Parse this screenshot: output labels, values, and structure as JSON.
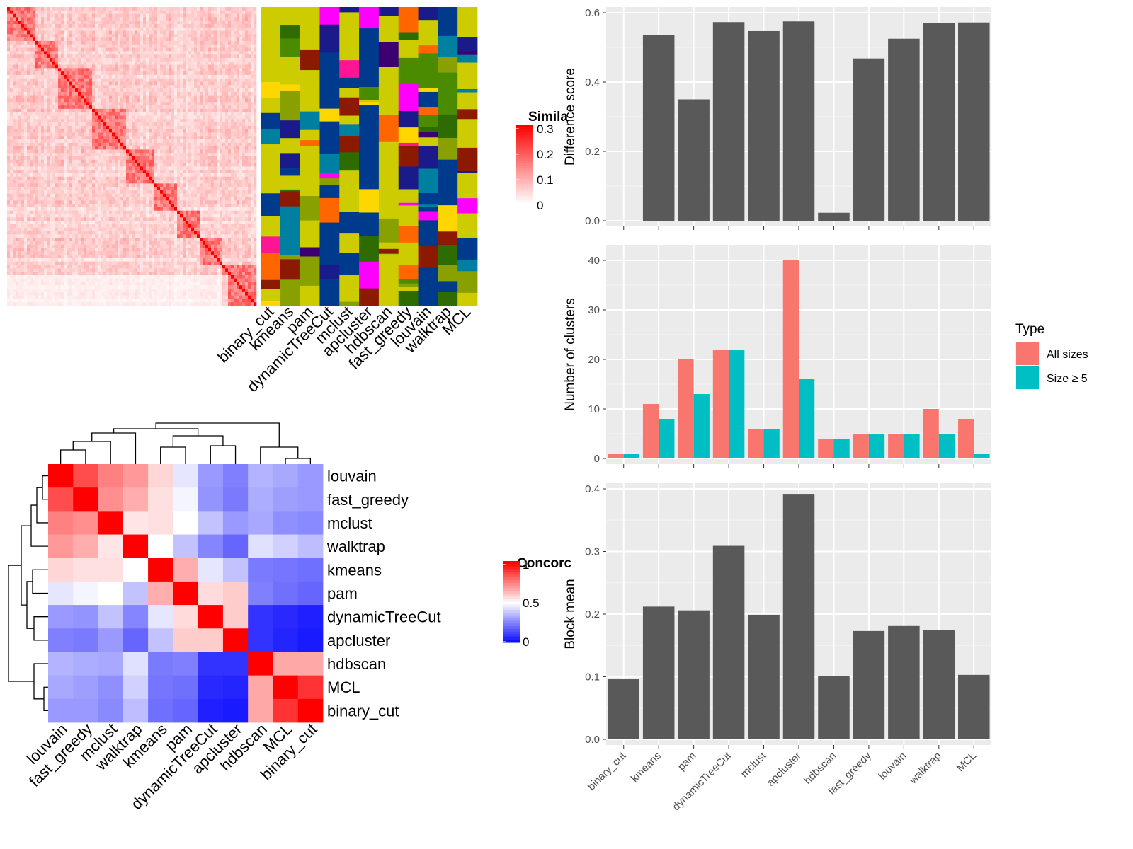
{
  "chart_data": [
    {
      "id": "similarity_heatmap",
      "type": "heatmap",
      "legend": {
        "title": "Simila",
        "ticks": [
          "0.3",
          "0.2",
          "0.1",
          "0"
        ],
        "colors": [
          "#ffffff",
          "#ff0000"
        ]
      },
      "methods": [
        "binary_cut",
        "kmeans",
        "pam",
        "dynamicTreeCut",
        "mclust",
        "apcluster",
        "hdbscan",
        "fast_greedy",
        "louvain",
        "walktrap",
        "MCL"
      ]
    },
    {
      "id": "concordance_heatmap",
      "type": "heatmap",
      "legend": {
        "title": "Concorc",
        "ticks": [
          "1",
          "0.5",
          "0"
        ],
        "colors": [
          "#0000ff",
          "#ffffff",
          "#ff0000"
        ]
      },
      "labels": [
        "louvain",
        "fast_greedy",
        "mclust",
        "walktrap",
        "kmeans",
        "pam",
        "dynamicTreeCut",
        "apcluster",
        "hdbscan",
        "MCL",
        "binary_cut"
      ],
      "matrix": [
        [
          1.0,
          0.85,
          0.75,
          0.7,
          0.58,
          0.45,
          0.3,
          0.25,
          0.35,
          0.33,
          0.3
        ],
        [
          0.85,
          1.0,
          0.72,
          0.66,
          0.56,
          0.48,
          0.29,
          0.24,
          0.34,
          0.31,
          0.3
        ],
        [
          0.75,
          0.72,
          1.0,
          0.55,
          0.56,
          0.5,
          0.38,
          0.3,
          0.33,
          0.28,
          0.27
        ],
        [
          0.7,
          0.66,
          0.55,
          1.0,
          0.5,
          0.38,
          0.26,
          0.2,
          0.44,
          0.41,
          0.37
        ],
        [
          0.58,
          0.56,
          0.56,
          0.5,
          1.0,
          0.66,
          0.45,
          0.38,
          0.24,
          0.23,
          0.22
        ],
        [
          0.45,
          0.48,
          0.5,
          0.38,
          0.66,
          1.0,
          0.57,
          0.6,
          0.25,
          0.22,
          0.2
        ],
        [
          0.3,
          0.29,
          0.38,
          0.26,
          0.45,
          0.57,
          1.0,
          0.6,
          0.1,
          0.08,
          0.06
        ],
        [
          0.25,
          0.24,
          0.3,
          0.2,
          0.38,
          0.6,
          0.6,
          1.0,
          0.1,
          0.07,
          0.05
        ],
        [
          0.35,
          0.34,
          0.33,
          0.44,
          0.24,
          0.25,
          0.1,
          0.1,
          1.0,
          0.67,
          0.67
        ],
        [
          0.33,
          0.31,
          0.28,
          0.41,
          0.23,
          0.22,
          0.08,
          0.07,
          0.67,
          1.0,
          0.9
        ],
        [
          0.3,
          0.3,
          0.27,
          0.37,
          0.22,
          0.2,
          0.06,
          0.05,
          0.67,
          0.9,
          1.0
        ]
      ]
    },
    {
      "id": "difference_score",
      "type": "bar",
      "categories": [
        "binary_cut",
        "kmeans",
        "pam",
        "dynamicTreeCut",
        "mclust",
        "apcluster",
        "hdbscan",
        "fast_greedy",
        "louvain",
        "walktrap",
        "MCL"
      ],
      "values": [
        0.0,
        0.535,
        0.35,
        0.573,
        0.547,
        0.575,
        0.023,
        0.468,
        0.525,
        0.57,
        0.572
      ],
      "ylabel": "Difference score",
      "ylim": [
        0,
        0.6
      ],
      "yticks": [
        "0.0",
        "0.2",
        "0.4",
        "0.6"
      ],
      "bar_color": "#595959"
    },
    {
      "id": "number_of_clusters",
      "type": "bar",
      "categories": [
        "binary_cut",
        "kmeans",
        "pam",
        "dynamicTreeCut",
        "mclust",
        "apcluster",
        "hdbscan",
        "fast_greedy",
        "louvain",
        "walktrap",
        "MCL"
      ],
      "series": [
        {
          "name": "All sizes",
          "color": "#f8766d",
          "values": [
            1,
            11,
            20,
            22,
            6,
            40,
            4,
            5,
            5,
            10,
            8
          ]
        },
        {
          "name": "Size ≥ 5",
          "color": "#00bfc4",
          "values": [
            1,
            8,
            13,
            22,
            6,
            16,
            4,
            5,
            5,
            5,
            1
          ]
        }
      ],
      "ylabel": "Number of clusters",
      "ylim": [
        0,
        42
      ],
      "yticks": [
        "0",
        "10",
        "20",
        "30",
        "40"
      ],
      "legend": {
        "title": "Type",
        "position": "right"
      }
    },
    {
      "id": "block_mean",
      "type": "bar",
      "categories": [
        "binary_cut",
        "kmeans",
        "pam",
        "dynamicTreeCut",
        "mclust",
        "apcluster",
        "hdbscan",
        "fast_greedy",
        "louvain",
        "walktrap",
        "MCL"
      ],
      "values": [
        0.096,
        0.212,
        0.206,
        0.309,
        0.199,
        0.392,
        0.101,
        0.173,
        0.181,
        0.174,
        0.103
      ],
      "ylabel": "Block mean",
      "ylim": [
        0,
        0.4
      ],
      "yticks": [
        "0.0",
        "0.1",
        "0.2",
        "0.3",
        "0.4"
      ],
      "bar_color": "#595959"
    }
  ]
}
